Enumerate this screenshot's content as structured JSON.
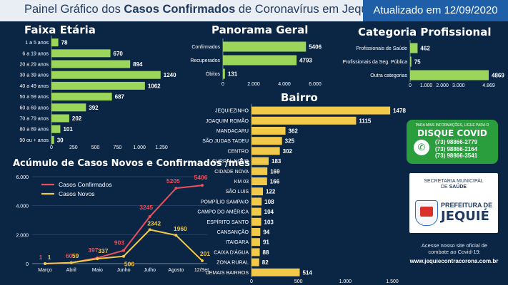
{
  "header": {
    "title_pre": "Painel Gráfico dos ",
    "title_bold": "Casos Confirmados",
    "title_post": " de Coronavírus em Jequié",
    "updated": "Atualizado em 12/09/2020"
  },
  "colors": {
    "bar_green": "#9bd65a",
    "bar_yellow": "#f3c94a",
    "line_red": "#e8505b",
    "line_yellow": "#f3c94a",
    "background": "#0b2545"
  },
  "chart_data": [
    {
      "id": "faixa",
      "type": "bar",
      "orientation": "horizontal",
      "title": "Faixa Etária",
      "categories": [
        "1 a 5 anos",
        "6 a 19 anos",
        "20 a 29 anos",
        "30 a 39 anos",
        "40 a 49 anos",
        "50 a 59 anos",
        "60 a 69 anos",
        "70 a 79 anos",
        "80 a 89 anos",
        "90 ou + anos"
      ],
      "values": [
        78,
        670,
        894,
        1240,
        1062,
        687,
        392,
        202,
        101,
        30
      ],
      "xlim": [
        0,
        1250
      ],
      "ticks": [
        0,
        250,
        500,
        750,
        1000,
        1250
      ],
      "tick_labels": [
        "0",
        "250",
        "500",
        "750",
        "1.000",
        "1.250"
      ]
    },
    {
      "id": "panorama",
      "type": "bar",
      "orientation": "horizontal",
      "title": "Panorama Geral",
      "categories": [
        "Confirmados",
        "Recuperados",
        "Óbitos"
      ],
      "values": [
        5406,
        4793,
        131
      ],
      "xlim": [
        0,
        6000
      ],
      "ticks": [
        0,
        2000,
        4000,
        6000
      ],
      "tick_labels": [
        "0",
        "2.000",
        "4.000",
        "6.000"
      ]
    },
    {
      "id": "categoria",
      "type": "bar",
      "orientation": "horizontal",
      "title": "Categoria Profissional",
      "categories": [
        "Profissionais de Saúde",
        "Profissionais da Seg. Pública",
        "Outra categorias"
      ],
      "values": [
        462,
        75,
        4869
      ],
      "xlim": [
        0,
        4869
      ],
      "ticks": [
        0,
        1000,
        2000,
        3000,
        4869
      ],
      "tick_labels": [
        "0",
        "1.000",
        "2.000",
        "3.000",
        "4.869"
      ]
    },
    {
      "id": "bairro",
      "type": "bar",
      "orientation": "horizontal",
      "title": "Bairro",
      "categories": [
        "JEQUIEZINHO",
        "JOAQUIM ROMÃO",
        "MANDACARU",
        "SÃO JUDAS TADEU",
        "CENTRO",
        "CURRAL NOVO",
        "CIDADE NOVA",
        "KM 03",
        "SÃO LUIS",
        "POMPÍLIO SAMPAIO",
        "CAMPO DO AMÉRICA",
        "ESPÍRITO SANTO",
        "CANSANÇÃO",
        "ITAIGARA",
        "CAIXA D'ÁGUA",
        "ZONA RURAL",
        "DEMAIS BAIRROS"
      ],
      "values": [
        1478,
        1115,
        362,
        325,
        302,
        183,
        169,
        166,
        122,
        108,
        104,
        103,
        94,
        91,
        88,
        82,
        514
      ],
      "xlim": [
        0,
        1500
      ],
      "ticks": [
        0,
        500,
        1000,
        1500
      ],
      "tick_labels": [
        "0",
        "500",
        "1.000",
        "1.500"
      ]
    },
    {
      "id": "acumulo",
      "type": "line",
      "title": "Acúmulo de Casos Novos e Confirmados /mês",
      "categories": [
        "Março",
        "Abril",
        "Maio",
        "Junho",
        "Julho",
        "Agosto",
        "12/Set."
      ],
      "series": [
        {
          "name": "Casos Confirmados",
          "values": [
            1,
            60,
            397,
            903,
            3245,
            5205,
            5406
          ],
          "labels": [
            "1",
            "60",
            "397",
            "903",
            "3245",
            "5205",
            "5406"
          ]
        },
        {
          "name": "Casos Novos",
          "values": [
            1,
            59,
            337,
            506,
            2342,
            1960,
            201
          ],
          "labels": [
            "1",
            "59",
            "337",
            "506",
            "2342",
            "1960",
            "201"
          ]
        }
      ],
      "ylim": [
        0,
        6000
      ],
      "ticks": [
        0,
        2000,
        4000,
        6000
      ],
      "tick_labels": [
        "0",
        "2.000",
        "4.000",
        "6.000"
      ]
    }
  ],
  "disque": {
    "top_text": "PARA MAIS INFORMAÇÕES, LIGUE PARA O",
    "title": "DISQUE COVID",
    "phone1": "(73) 98866-2779",
    "phone2": "(73) 98866-2164",
    "phone3": "(73) 98866-3541"
  },
  "logo": {
    "sec_line1": "SECRETARIA MUNICIPAL",
    "sec_line2_pre": "DE ",
    "sec_line2_bold": "SAÚDE",
    "pref_small": "PREFEITURA DE",
    "pref_big": "JEQUIÉ"
  },
  "footer": {
    "note_line1": "Acesse nosso site oficial de",
    "note_line2": "combate ao Covid-19:",
    "url": "www.jequiecontracorona.com.br"
  }
}
